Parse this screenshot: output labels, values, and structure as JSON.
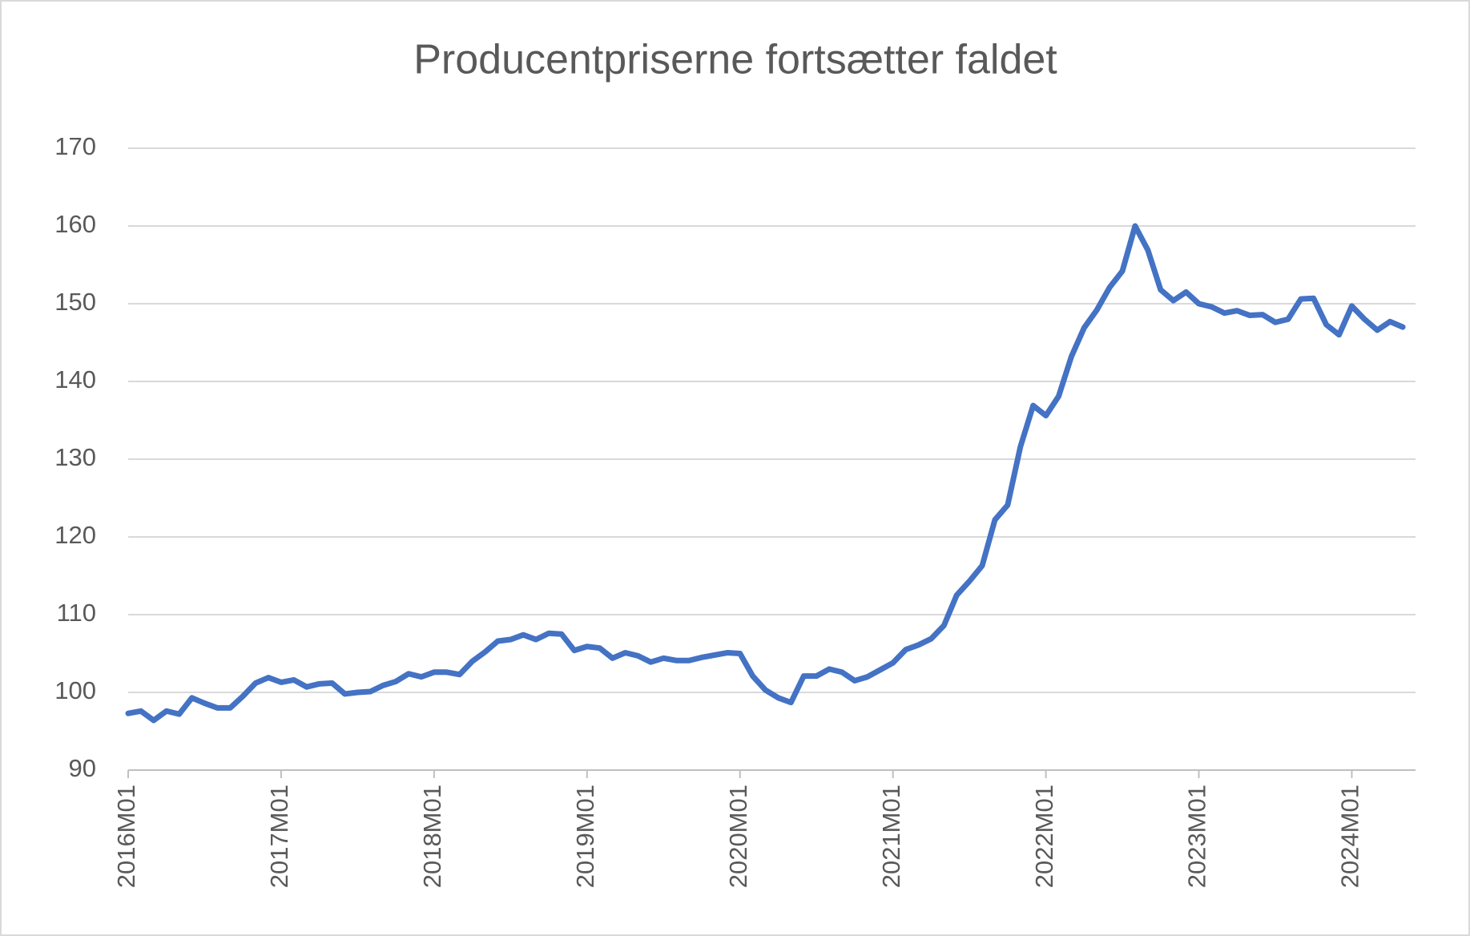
{
  "chart_data": {
    "type": "line",
    "title": "Producentpriserne fortsætter faldet",
    "categories": [
      "2016M01",
      null,
      null,
      null,
      null,
      null,
      null,
      null,
      null,
      null,
      null,
      null,
      "2017M01",
      null,
      null,
      null,
      null,
      null,
      null,
      null,
      null,
      null,
      null,
      null,
      "2018M01",
      null,
      null,
      null,
      null,
      null,
      null,
      null,
      null,
      null,
      null,
      null,
      "2019M01",
      null,
      null,
      null,
      null,
      null,
      null,
      null,
      null,
      null,
      null,
      null,
      "2020M01",
      null,
      null,
      null,
      null,
      null,
      null,
      null,
      null,
      null,
      null,
      null,
      "2021M01",
      null,
      null,
      null,
      null,
      null,
      null,
      null,
      null,
      null,
      null,
      null,
      "2022M01",
      null,
      null,
      null,
      null,
      null,
      null,
      null,
      null,
      null,
      null,
      null,
      "2023M01",
      null,
      null,
      null,
      null,
      null,
      null,
      null,
      null,
      null,
      null,
      null,
      "2024M01",
      null,
      null,
      null,
      null
    ],
    "series": [
      {
        "color": "#4472c4",
        "values": [
          97.3,
          97.6,
          96.4,
          97.6,
          97.2,
          99.3,
          98.6,
          98.0,
          98.0,
          99.5,
          101.2,
          101.9,
          101.3,
          101.6,
          100.7,
          101.1,
          101.2,
          99.8,
          100.0,
          100.1,
          100.9,
          101.4,
          102.4,
          102.0,
          102.6,
          102.6,
          102.3,
          104.0,
          105.2,
          106.6,
          106.8,
          107.4,
          106.8,
          107.6,
          107.5,
          105.4,
          105.9,
          105.7,
          104.4,
          105.1,
          104.7,
          103.9,
          104.4,
          104.1,
          104.1,
          104.5,
          104.8,
          105.1,
          105.0,
          102.1,
          100.3,
          99.3,
          98.7,
          102.1,
          102.1,
          103.0,
          102.6,
          101.5,
          102.0,
          102.9,
          103.8,
          105.5,
          106.1,
          106.9,
          108.6,
          112.5,
          114.3,
          116.3,
          122.2,
          124.1,
          131.6,
          136.9,
          135.6,
          138.1,
          143.2,
          146.9,
          149.2,
          152.1,
          154.2,
          160.0,
          156.9,
          151.8,
          150.4,
          151.5,
          150.0,
          149.6,
          148.8,
          149.1,
          148.5,
          148.6,
          147.6,
          148.0,
          150.6,
          150.7,
          147.3,
          146.0,
          149.7,
          148.0,
          146.6,
          147.7,
          147.0
        ]
      }
    ],
    "ylim": [
      90,
      170
    ],
    "yticks": [
      90,
      100,
      110,
      120,
      130,
      140,
      150,
      160,
      170
    ],
    "grid": true
  }
}
